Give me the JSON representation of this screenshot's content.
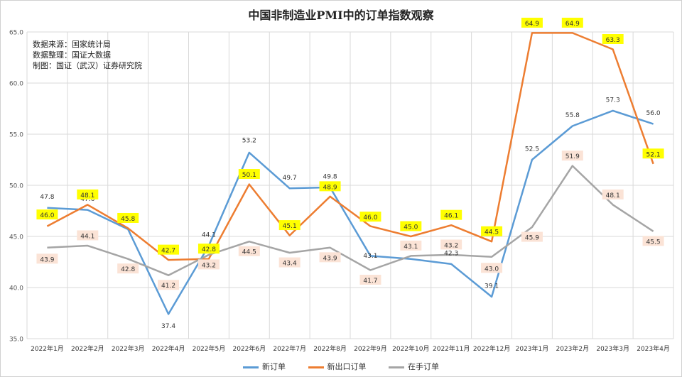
{
  "chart_data": {
    "type": "line",
    "title": "中国非制造业PMI中的订单指数观察",
    "source_lines": [
      "数据来源：国家统计局",
      "数据整理：国证大数据",
      "制图：国证（武汉）证券研究院"
    ],
    "categories": [
      "2022年1月",
      "2022年2月",
      "2022年3月",
      "2022年4月",
      "2022年5月",
      "2022年6月",
      "2022年7月",
      "2022年8月",
      "2022年9月",
      "2022年10月",
      "2022年11月",
      "2022年12月",
      "2023年1月",
      "2023年2月",
      "2023年3月",
      "2023年4月"
    ],
    "ylim": [
      35,
      65
    ],
    "yticks": [
      "35.0",
      "40.0",
      "45.0",
      "50.0",
      "55.0",
      "60.0",
      "65.0"
    ],
    "grid": true,
    "legend_position": "bottom",
    "series": [
      {
        "name": "新订单",
        "color": "#5b9bd5",
        "values": [
          47.8,
          47.6,
          45.7,
          37.4,
          44.1,
          53.2,
          49.7,
          49.8,
          43.1,
          42.8,
          42.3,
          39.1,
          52.5,
          55.8,
          57.3,
          56.0
        ],
        "labels": [
          "47.8",
          "47.6",
          "45.7",
          "37.4",
          "44.1",
          "53.2",
          "49.7",
          "49.8",
          "43.1",
          "42.8",
          "42.3",
          "39.1",
          "52.5",
          "55.8",
          "57.3",
          "56.0"
        ],
        "label_bg": "none"
      },
      {
        "name": "新出口订单",
        "color": "#ed7d31",
        "values": [
          46.0,
          48.1,
          45.8,
          42.7,
          42.8,
          50.1,
          45.1,
          48.9,
          46.0,
          45.0,
          46.1,
          44.5,
          64.9,
          64.9,
          63.3,
          52.1
        ],
        "labels": [
          "46.0",
          "48.1",
          "45.8",
          "42.7",
          "42.8",
          "50.1",
          "45.1",
          "48.9",
          "46.0",
          "45.0",
          "46.1",
          "44.5",
          "64.9",
          "64.9",
          "63.3",
          "52.1"
        ],
        "label_bg": "#ffff00"
      },
      {
        "name": "在手订单",
        "color": "#a5a5a5",
        "values": [
          43.9,
          44.1,
          42.8,
          41.2,
          43.2,
          44.5,
          43.4,
          43.9,
          41.7,
          43.1,
          43.2,
          43.0,
          45.9,
          51.9,
          48.1,
          45.5
        ],
        "labels": [
          "43.9",
          "44.1",
          "42.8",
          "41.2",
          "43.2",
          "44.5",
          "43.4",
          "43.9",
          "41.7",
          "43.1",
          "43.2",
          "43.0",
          "45.9",
          "51.9",
          "48.1",
          "45.5"
        ],
        "label_bg": "#fbe3d6"
      }
    ]
  }
}
